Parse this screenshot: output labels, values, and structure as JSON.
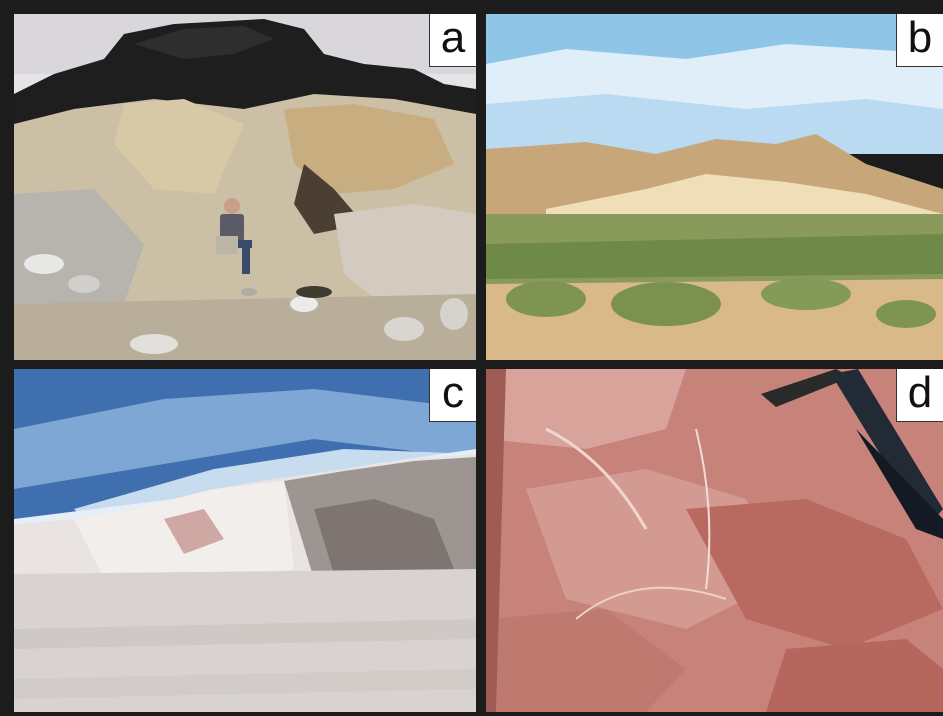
{
  "panels": [
    {
      "id": "a",
      "label": "a"
    },
    {
      "id": "b",
      "label": "b"
    },
    {
      "id": "c",
      "label": "c"
    },
    {
      "id": "d",
      "label": "d"
    }
  ],
  "colors": {
    "border": "#1c1c1c",
    "label_bg": "#ffffff",
    "a_rock_dark": "#1d1d1d",
    "b_sand": "#d9b98a",
    "b_sky": "#8fc6e8",
    "c_sky": "#3f6fae",
    "c_ground": "#d8d3d1",
    "d_rock": "#c7837a",
    "d_hammer": "#222a36"
  }
}
